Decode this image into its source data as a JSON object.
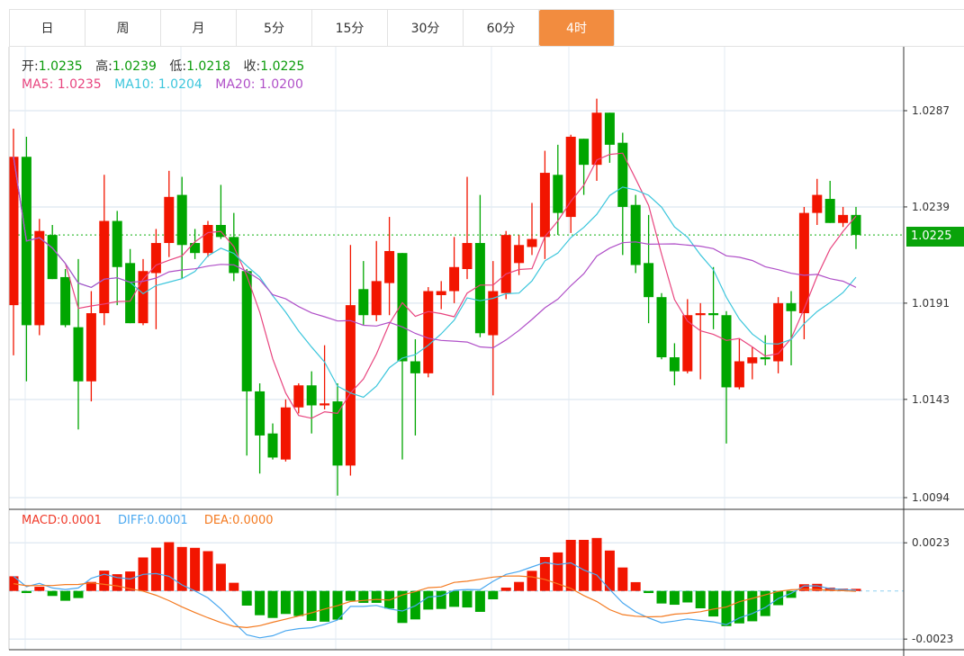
{
  "tabs": [
    {
      "label": "日"
    },
    {
      "label": "周"
    },
    {
      "label": "月"
    },
    {
      "label": "5分"
    },
    {
      "label": "15分"
    },
    {
      "label": "30分"
    },
    {
      "label": "60分"
    },
    {
      "label": "4时",
      "active": true
    }
  ],
  "ohlc_info": {
    "open_label": "开:",
    "open": "1.0235",
    "high_label": "高:",
    "high": "1.0239",
    "low_label": "低:",
    "low": "1.0218",
    "close_label": "收:",
    "close": "1.0225"
  },
  "ma_info": {
    "ma5": "MA5: 1.0235",
    "ma10": "MA10: 1.0204",
    "ma20": "MA20: 1.0200"
  },
  "macd_info": {
    "macd_label": "MACD:",
    "macd": "0.0001",
    "diff_label": "DIFF:",
    "diff": "0.0001",
    "dea_label": "DEA:",
    "dea": "0.0000"
  },
  "current_price": "1.0225",
  "colors": {
    "up": "#f21500",
    "down": "#00a600",
    "ma5": "#e8457f",
    "ma10": "#3cc6dc",
    "ma20": "#b050c8",
    "diff": "#4aa8f0",
    "dea": "#f47a20",
    "accent": "#f28c3f"
  },
  "chart_data": {
    "type": "candlestick",
    "price_axis": {
      "ticks": [
        "1.0287",
        "1.0239",
        "1.0191",
        "1.0143",
        "1.0094"
      ],
      "range": [
        1.0094,
        1.0287
      ]
    },
    "macd_axis": {
      "ticks": [
        "0.0023",
        "-0.0023"
      ],
      "range": [
        -0.0023,
        0.0023
      ]
    },
    "ohlc": [
      [
        1.019,
        1.0278,
        1.0165,
        1.0264
      ],
      [
        1.0264,
        1.0274,
        1.0152,
        1.018
      ],
      [
        1.018,
        1.0233,
        1.0175,
        1.0227
      ],
      [
        1.0225,
        1.023,
        1.0203,
        1.0203
      ],
      [
        1.0204,
        1.0208,
        1.0179,
        1.018
      ],
      [
        1.0179,
        1.0213,
        1.0128,
        1.0152
      ],
      [
        1.0152,
        1.0197,
        1.0142,
        1.0186
      ],
      [
        1.0186,
        1.0255,
        1.018,
        1.0232
      ],
      [
        1.0232,
        1.0237,
        1.019,
        1.0209
      ],
      [
        1.0211,
        1.0218,
        1.0181,
        1.0181
      ],
      [
        1.0181,
        1.0213,
        1.018,
        1.0207
      ],
      [
        1.0206,
        1.0228,
        1.0178,
        1.0221
      ],
      [
        1.0221,
        1.0257,
        1.0214,
        1.0244
      ],
      [
        1.0245,
        1.0254,
        1.0203,
        1.022
      ],
      [
        1.0221,
        1.0228,
        1.0213,
        1.0216
      ],
      [
        1.0216,
        1.0232,
        1.0214,
        1.023
      ],
      [
        1.023,
        1.025,
        1.0223,
        1.0224
      ],
      [
        1.0224,
        1.0236,
        1.0202,
        1.0206
      ],
      [
        1.0207,
        1.0208,
        1.0115,
        1.0147
      ],
      [
        1.0147,
        1.0151,
        1.0106,
        1.0125
      ],
      [
        1.0126,
        1.0131,
        1.0113,
        1.0114
      ],
      [
        1.0113,
        1.0143,
        1.0112,
        1.0139
      ],
      [
        1.0139,
        1.0151,
        1.0136,
        1.015
      ],
      [
        1.015,
        1.0157,
        1.0126,
        1.014
      ],
      [
        1.014,
        1.017,
        1.0138,
        1.0141
      ],
      [
        1.0142,
        1.0151,
        1.0095,
        1.011
      ],
      [
        1.011,
        1.022,
        1.0105,
        1.019
      ],
      [
        1.0198,
        1.0212,
        1.018,
        1.0185
      ],
      [
        1.0185,
        1.0222,
        1.0182,
        1.0202
      ],
      [
        1.0201,
        1.0234,
        1.0185,
        1.0217
      ],
      [
        1.0216,
        1.0216,
        1.0113,
        1.0162
      ],
      [
        1.0162,
        1.0173,
        1.0125,
        1.0156
      ],
      [
        1.0156,
        1.0199,
        1.0154,
        1.0197
      ],
      [
        1.0195,
        1.0202,
        1.0188,
        1.0197
      ],
      [
        1.0197,
        1.0224,
        1.0191,
        1.0209
      ],
      [
        1.0208,
        1.0254,
        1.0203,
        1.0221
      ],
      [
        1.0221,
        1.0245,
        1.0174,
        1.0176
      ],
      [
        1.0175,
        1.0212,
        1.0145,
        1.0197
      ],
      [
        1.0196,
        1.0227,
        1.0193,
        1.0225
      ],
      [
        1.0211,
        1.0225,
        1.0205,
        1.022
      ],
      [
        1.0219,
        1.0241,
        1.0215,
        1.0223
      ],
      [
        1.0224,
        1.0267,
        1.0213,
        1.0256
      ],
      [
        1.0255,
        1.027,
        1.0225,
        1.0236
      ],
      [
        1.0234,
        1.0275,
        1.0226,
        1.0274
      ],
      [
        1.0273,
        1.0273,
        1.0245,
        1.026
      ],
      [
        1.026,
        1.0293,
        1.0252,
        1.0286
      ],
      [
        1.0286,
        1.0286,
        1.0261,
        1.027
      ],
      [
        1.0271,
        1.0276,
        1.0215,
        1.0239
      ],
      [
        1.024,
        1.0245,
        1.0206,
        1.021
      ],
      [
        1.0211,
        1.0235,
        1.0181,
        1.0194
      ],
      [
        1.0194,
        1.0196,
        1.0163,
        1.0164
      ],
      [
        1.0164,
        1.0171,
        1.015,
        1.0157
      ],
      [
        1.0157,
        1.0193,
        1.0156,
        1.0185
      ],
      [
        1.0185,
        1.0191,
        1.0153,
        1.0186
      ],
      [
        1.0186,
        1.0209,
        1.0178,
        1.0185
      ],
      [
        1.0185,
        1.0187,
        1.0121,
        1.0149
      ],
      [
        1.0149,
        1.0173,
        1.0148,
        1.0162
      ],
      [
        1.0161,
        1.0169,
        1.0153,
        1.0164
      ],
      [
        1.0164,
        1.0175,
        1.016,
        1.0163
      ],
      [
        1.0162,
        1.0194,
        1.0156,
        1.0191
      ],
      [
        1.0191,
        1.0197,
        1.016,
        1.0187
      ],
      [
        1.0186,
        1.0239,
        1.0173,
        1.0236
      ],
      [
        1.0236,
        1.0253,
        1.023,
        1.0245
      ],
      [
        1.0243,
        1.0252,
        1.0231,
        1.0231
      ],
      [
        1.0231,
        1.0239,
        1.0229,
        1.0235
      ],
      [
        1.0235,
        1.0239,
        1.0218,
        1.0225
      ]
    ],
    "macd_hist": [
      0.0007,
      -0.0001,
      0.0002,
      -0.00024,
      -0.00047,
      -0.00034,
      0.00043,
      0.00097,
      0.0008,
      0.00093,
      0.0016,
      0.00207,
      0.00233,
      0.0021,
      0.00206,
      0.0019,
      0.0013,
      0.00039,
      -0.0007,
      -0.00116,
      -0.00129,
      -0.0011,
      -0.0012,
      -0.00143,
      -0.00147,
      -0.00137,
      -0.00047,
      -0.00057,
      -0.00057,
      -0.00084,
      -0.00153,
      -0.00136,
      -0.00089,
      -0.00086,
      -0.00076,
      -0.00079,
      -0.001,
      -0.0004,
      0.00016,
      0.00043,
      0.00096,
      0.00162,
      0.00184,
      0.00244,
      0.00244,
      0.00253,
      0.00193,
      0.00112,
      0.00042,
      -0.0001,
      -0.0006,
      -0.00066,
      -0.00055,
      -0.00083,
      -0.00122,
      -0.00168,
      -0.00155,
      -0.00145,
      -0.0012,
      -0.00068,
      -0.00033,
      0.00032,
      0.00034,
      0.00016,
      0.00011,
      0.0001
    ],
    "diff": [
      0.0007,
      0.0002,
      0.00036,
      0.00014,
      7e-05,
      0.00014,
      0.0006,
      0.0008,
      0.00064,
      0.00057,
      0.00079,
      0.00083,
      0.0007,
      0.00029,
      0.0,
      -0.00033,
      -0.00086,
      -0.0015,
      -0.0021,
      -0.00224,
      -0.00214,
      -0.0019,
      -0.0018,
      -0.00176,
      -0.0016,
      -0.00139,
      -0.00074,
      -0.00074,
      -0.00069,
      -0.00086,
      -0.00096,
      -0.00071,
      -0.00029,
      -0.00024,
      3e-05,
      7e-05,
      6e-05,
      0.00046,
      0.00079,
      0.00093,
      0.00115,
      0.00136,
      0.00126,
      0.00134,
      0.001,
      0.00076,
      7e-05,
      -0.00057,
      -0.001,
      -0.00129,
      -0.00152,
      -0.00144,
      -0.00134,
      -0.00141,
      -0.00148,
      -0.00161,
      -0.00129,
      -0.00108,
      -0.00079,
      -0.00036,
      -0.00011,
      0.00024,
      0.00024,
      0.00011,
      7e-05,
      3e-05
    ]
  }
}
